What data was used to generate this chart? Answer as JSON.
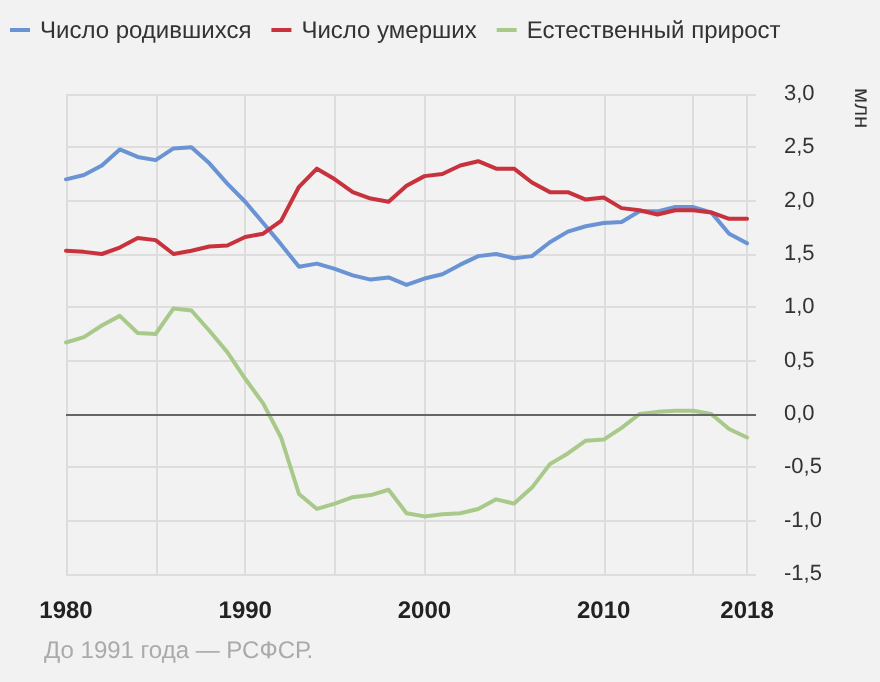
{
  "chart_data": {
    "type": "line",
    "ylabel": "млн",
    "annotations": [
      "До 1991 года — РСФСР."
    ],
    "x": [
      1980,
      1981,
      1982,
      1983,
      1984,
      1985,
      1986,
      1987,
      1988,
      1989,
      1990,
      1991,
      1992,
      1993,
      1994,
      1995,
      1996,
      1997,
      1998,
      1999,
      2000,
      2001,
      2002,
      2003,
      2004,
      2005,
      2006,
      2007,
      2008,
      2009,
      2010,
      2011,
      2012,
      2013,
      2014,
      2015,
      2016,
      2017,
      2018
    ],
    "series": [
      {
        "name": "Число родившихся",
        "color": "#6a93d4",
        "values": [
          2.2,
          2.24,
          2.33,
          2.48,
          2.41,
          2.38,
          2.49,
          2.5,
          2.35,
          2.16,
          1.99,
          1.79,
          1.59,
          1.38,
          1.41,
          1.36,
          1.3,
          1.26,
          1.28,
          1.21,
          1.27,
          1.31,
          1.4,
          1.48,
          1.5,
          1.46,
          1.48,
          1.61,
          1.71,
          1.76,
          1.79,
          1.8,
          1.9,
          1.9,
          1.94,
          1.94,
          1.89,
          1.69,
          1.6
        ]
      },
      {
        "name": "Число умерших",
        "color": "#c8323c",
        "values": [
          1.53,
          1.52,
          1.5,
          1.56,
          1.65,
          1.63,
          1.5,
          1.53,
          1.57,
          1.58,
          1.66,
          1.69,
          1.81,
          2.13,
          2.3,
          2.2,
          2.08,
          2.02,
          1.99,
          2.14,
          2.23,
          2.25,
          2.33,
          2.37,
          2.3,
          2.3,
          2.17,
          2.08,
          2.08,
          2.01,
          2.03,
          1.93,
          1.91,
          1.87,
          1.91,
          1.91,
          1.89,
          1.83,
          1.83
        ]
      },
      {
        "name": "Естественный прирост",
        "color": "#a9c98a",
        "values": [
          0.67,
          0.72,
          0.83,
          0.92,
          0.76,
          0.75,
          0.99,
          0.97,
          0.78,
          0.58,
          0.33,
          0.1,
          -0.22,
          -0.75,
          -0.89,
          -0.84,
          -0.78,
          -0.76,
          -0.71,
          -0.93,
          -0.96,
          -0.94,
          -0.93,
          -0.89,
          -0.8,
          -0.84,
          -0.69,
          -0.47,
          -0.37,
          -0.25,
          -0.24,
          -0.13,
          0.0,
          0.02,
          0.03,
          0.03,
          0.0,
          -0.14,
          -0.22
        ]
      }
    ],
    "xlim": [
      1980,
      2018.5
    ],
    "xticks": [
      1980,
      {
        "value": 1985,
        "label": null
      },
      1990,
      {
        "value": 1995,
        "label": null
      },
      2000,
      {
        "value": 2005,
        "label": null
      },
      2010,
      {
        "value": 2015,
        "label": null
      },
      2018
    ],
    "ylim": [
      -1.5,
      3.0
    ],
    "yticks": [
      {
        "value": -1.5,
        "label": "-1,5"
      },
      {
        "value": -1.0,
        "label": "-1,0"
      },
      {
        "value": -0.5,
        "label": "-0,5"
      },
      {
        "value": 0,
        "label": "0,0"
      },
      {
        "value": 0.5,
        "label": "0,5"
      },
      {
        "value": 1.0,
        "label": "1,0"
      },
      {
        "value": 1.5,
        "label": "1,5"
      },
      {
        "value": 2.0,
        "label": "2,0"
      },
      {
        "value": 2.5,
        "label": "2,5"
      },
      {
        "value": 3.0,
        "label": "3,0"
      }
    ],
    "ref_lines": [
      {
        "axis": "y",
        "value": 0,
        "color": "#666666"
      }
    ],
    "grid": true,
    "legend": "top left",
    "marker": "none",
    "line_style": "solid"
  }
}
